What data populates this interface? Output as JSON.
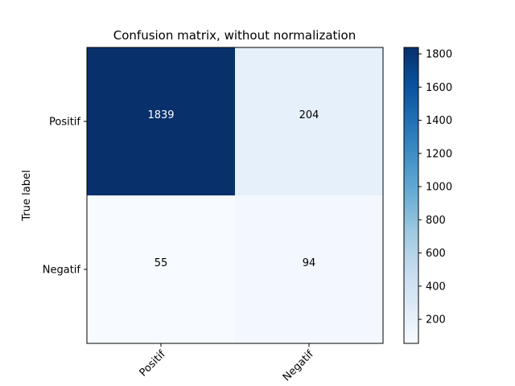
{
  "chart_data": {
    "type": "heatmap",
    "title": "Confusion matrix, without normalization",
    "ylabel": "True label",
    "xlabel": "",
    "row_labels": [
      "Positif",
      "Negatif"
    ],
    "col_labels": [
      "Positif",
      "Negatif"
    ],
    "values": [
      [
        1839,
        204
      ],
      [
        55,
        94
      ]
    ],
    "value_range": [
      55,
      1839
    ],
    "colormap": "Blues",
    "colorbar": {
      "ticks": [
        200,
        400,
        600,
        800,
        1000,
        1200,
        1400,
        1600,
        1800
      ],
      "labels": [
        "200",
        "400",
        "600",
        "800",
        "1000",
        "1200",
        "1400",
        "1600",
        "1800"
      ]
    },
    "x_tick_rotation_deg": 45,
    "colors": {
      "low": "#f7fbff",
      "high": "#08306b",
      "text_dark": "#000000",
      "text_light": "#ffffff"
    }
  }
}
